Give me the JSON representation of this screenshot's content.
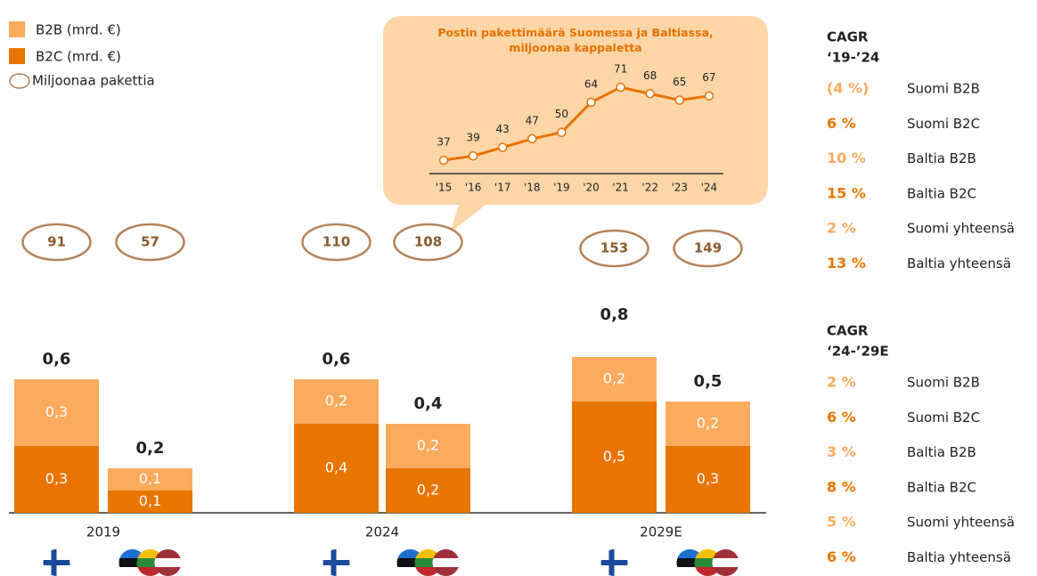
{
  "chart_data": [
    {
      "type": "bar",
      "stacked": true,
      "groups": [
        "2019",
        "2024",
        "2029E"
      ],
      "series": [
        {
          "name": "B2B (mrd. €)",
          "color": "#fbab5e",
          "values": [
            0.3,
            0.1,
            0.2,
            0.2,
            0.2,
            0.2
          ],
          "value_labels": [
            "0,3",
            "0,1",
            "0,2",
            "0,2",
            "0,2",
            "0,2"
          ]
        },
        {
          "name": "B2C (mrd. €)",
          "color": "#e77500",
          "values": [
            0.3,
            0.1,
            0.4,
            0.2,
            0.5,
            0.3
          ],
          "value_labels": [
            "0,3",
            "0,1",
            "0,4",
            "0,2",
            "0,5",
            "0,3"
          ]
        }
      ],
      "totals": {
        "values": [
          0.6,
          0.2,
          0.6,
          0.4,
          0.8,
          0.5
        ],
        "value_labels": [
          "0,6",
          "0,2",
          "0,6",
          "0,4",
          "0,8",
          "0,5"
        ]
      },
      "packages": {
        "name": "Miljoonaa pakettia",
        "color": "#b5835a",
        "values": [
          91,
          57,
          110,
          108,
          153,
          149
        ]
      }
    },
    {
      "type": "line",
      "title": "Postin pakettimäärä Suomessa ja Baltiassa, miljoonaa kappaletta",
      "categories": [
        "'15",
        "'16",
        "'17",
        "'18",
        "'19",
        "'20",
        "'21",
        "'22",
        "'23",
        "'24"
      ],
      "values": [
        37,
        39,
        43,
        47,
        50,
        64,
        71,
        68,
        65,
        67
      ],
      "color": "#e87200"
    }
  ],
  "cagr": [
    {
      "header": [
        "CAGR",
        "‘19-’24"
      ],
      "rows": [
        {
          "value": "(4 %)",
          "label": "Suomi B2B",
          "color": "#fbab5e"
        },
        {
          "value": "6 %",
          "label": "Suomi B2C",
          "color": "#e77500"
        },
        {
          "value": "10 %",
          "label": "Baltia B2B",
          "color": "#fbab5e"
        },
        {
          "value": "15 %",
          "label": "Baltia B2C",
          "color": "#e77500"
        },
        {
          "value": "2 %",
          "label": "Suomi yhteensä",
          "color": "#fbab5e"
        },
        {
          "value": "13 %",
          "label": "Baltia yhteensä",
          "color": "#e77500"
        }
      ]
    },
    {
      "header": [
        "CAGR",
        "‘24-’29E"
      ],
      "rows": [
        {
          "value": "2 %",
          "label": "Suomi B2B",
          "color": "#fbab5e"
        },
        {
          "value": "6 %",
          "label": "Suomi B2C",
          "color": "#e77500"
        },
        {
          "value": "3 %",
          "label": "Baltia B2B",
          "color": "#fbab5e"
        },
        {
          "value": "8 %",
          "label": "Baltia B2C",
          "color": "#e77500"
        },
        {
          "value": "5 %",
          "label": "Suomi yhteensä",
          "color": "#fbab5e"
        },
        {
          "value": "6 %",
          "label": "Baltia yhteensä",
          "color": "#e77500"
        }
      ]
    }
  ]
}
